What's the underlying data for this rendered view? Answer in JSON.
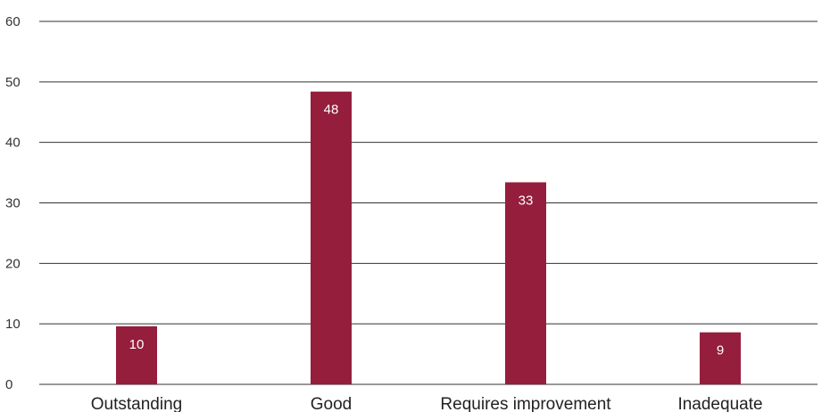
{
  "chart_data": {
    "type": "bar",
    "title": "",
    "xlabel": "",
    "ylabel": "",
    "categories": [
      "Outstanding",
      "Good",
      "Requires improvement",
      "Inadequate"
    ],
    "values": [
      9.6,
      48.4,
      33.4,
      8.6
    ],
    "data_labels": [
      "10",
      "48",
      "33",
      "9"
    ],
    "ylim": [
      0,
      60
    ],
    "yticks": [
      0,
      10,
      20,
      30,
      40,
      50,
      60
    ],
    "grid": true,
    "legend": "none",
    "bar_color": "#941e3c"
  }
}
